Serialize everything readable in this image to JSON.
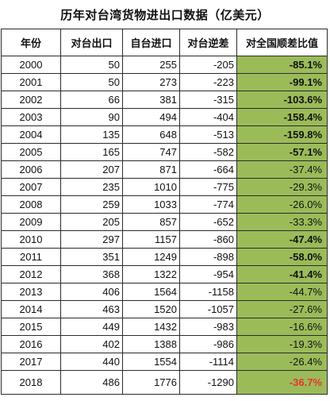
{
  "title": "历年对台湾货物进出口数据（亿美元）",
  "headers": [
    "年份",
    "对台出口",
    "自台进口",
    "对台逆差",
    "对全国顺差比值"
  ],
  "highlight_color": "#9bbb59",
  "emphasis_color": "#e8352d",
  "rows": [
    {
      "year": "2000",
      "export": "50",
      "import": "255",
      "deficit": "-205",
      "ratio": "-85.1%",
      "style": "bold"
    },
    {
      "year": "2001",
      "export": "50",
      "import": "273",
      "deficit": "-223",
      "ratio": "-99.1%",
      "style": "bold"
    },
    {
      "year": "2002",
      "export": "66",
      "import": "381",
      "deficit": "-315",
      "ratio": "-103.6%",
      "style": "bold"
    },
    {
      "year": "2003",
      "export": "90",
      "import": "494",
      "deficit": "-404",
      "ratio": "-158.4%",
      "style": "bold"
    },
    {
      "year": "2004",
      "export": "135",
      "import": "648",
      "deficit": "-513",
      "ratio": "-159.8%",
      "style": "bold"
    },
    {
      "year": "2005",
      "export": "165",
      "import": "747",
      "deficit": "-582",
      "ratio": "-57.1%",
      "style": "bold"
    },
    {
      "year": "2006",
      "export": "207",
      "import": "871",
      "deficit": "-664",
      "ratio": "-37.4%",
      "style": "normal"
    },
    {
      "year": "2007",
      "export": "235",
      "import": "1010",
      "deficit": "-775",
      "ratio": "-29.3%",
      "style": "normal"
    },
    {
      "year": "2008",
      "export": "259",
      "import": "1033",
      "deficit": "-774",
      "ratio": "-26.0%",
      "style": "normal"
    },
    {
      "year": "2009",
      "export": "205",
      "import": "857",
      "deficit": "-652",
      "ratio": "-33.3%",
      "style": "normal"
    },
    {
      "year": "2010",
      "export": "297",
      "import": "1157",
      "deficit": "-860",
      "ratio": "-47.4%",
      "style": "bold"
    },
    {
      "year": "2011",
      "export": "351",
      "import": "1249",
      "deficit": "-898",
      "ratio": "-58.0%",
      "style": "bold"
    },
    {
      "year": "2012",
      "export": "368",
      "import": "1322",
      "deficit": "-954",
      "ratio": "-41.4%",
      "style": "bold"
    },
    {
      "year": "2013",
      "export": "406",
      "import": "1564",
      "deficit": "-1158",
      "ratio": "-44.7%",
      "style": "normal"
    },
    {
      "year": "2014",
      "export": "463",
      "import": "1520",
      "deficit": "-1057",
      "ratio": "-27.6%",
      "style": "normal"
    },
    {
      "year": "2015",
      "export": "449",
      "import": "1432",
      "deficit": "-983",
      "ratio": "-16.6%",
      "style": "normal"
    },
    {
      "year": "2016",
      "export": "402",
      "import": "1388",
      "deficit": "-986",
      "ratio": "-19.3%",
      "style": "normal"
    },
    {
      "year": "2017",
      "export": "440",
      "import": "1554",
      "deficit": "-1114",
      "ratio": "-26.4%",
      "style": "normal"
    },
    {
      "year": "2018",
      "export": "486",
      "import": "1776",
      "deficit": "-1290",
      "ratio": "-36.7%",
      "style": "red"
    }
  ]
}
